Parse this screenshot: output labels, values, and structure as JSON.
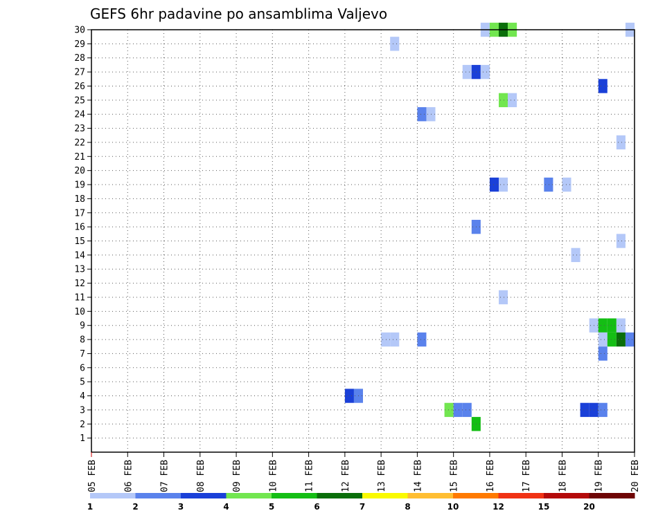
{
  "chart_data": {
    "type": "heatmap",
    "title": "GEFS 6hr padavine po ansamblima Valjevo",
    "xlabel": "",
    "ylabel": "",
    "x_tick_labels": [
      "05 FEB",
      "06 FEB",
      "07 FEB",
      "08 FEB",
      "09 FEB",
      "10 FEB",
      "11 FEB",
      "12 FEB",
      "13 FEB",
      "14 FEB",
      "15 FEB",
      "16 FEB",
      "17 FEB",
      "18 FEB",
      "19 FEB",
      "20 FEB"
    ],
    "xlim": [
      0,
      15
    ],
    "ylim": [
      0,
      30
    ],
    "y_ticks": [
      1,
      2,
      3,
      4,
      5,
      6,
      7,
      8,
      9,
      10,
      11,
      12,
      13,
      14,
      15,
      16,
      17,
      18,
      19,
      20,
      21,
      22,
      23,
      24,
      25,
      26,
      27,
      28,
      29,
      30
    ],
    "grid": true,
    "legend": {
      "placement": "bottom",
      "levels": [
        "1",
        "2",
        "3",
        "4",
        "5",
        "6",
        "7",
        "8",
        "10",
        "12",
        "15",
        "20"
      ],
      "colors": [
        "#b4c8f8",
        "#5a82ec",
        "#1a40d8",
        "#72e650",
        "#14be14",
        "#0a6e0a",
        "#fafa00",
        "#ffbe32",
        "#ff7a00",
        "#f03214",
        "#b40a0a",
        "#6e0505"
      ]
    },
    "cell_duration_days": 0.25,
    "cells": [
      {
        "member": 30,
        "time": 10.75,
        "color": "#b4c8f8"
      },
      {
        "member": 30,
        "time": 11.0,
        "color": "#72e650"
      },
      {
        "member": 30,
        "time": 11.25,
        "color": "#0a6e0a"
      },
      {
        "member": 30,
        "time": 11.5,
        "color": "#72e650"
      },
      {
        "member": 30,
        "time": 14.75,
        "color": "#b4c8f8"
      },
      {
        "member": 29,
        "time": 8.25,
        "color": "#b4c8f8"
      },
      {
        "member": 27,
        "time": 10.25,
        "color": "#b4c8f8"
      },
      {
        "member": 27,
        "time": 10.5,
        "color": "#1a40d8"
      },
      {
        "member": 27,
        "time": 10.75,
        "color": "#b4c8f8"
      },
      {
        "member": 26,
        "time": 14.0,
        "color": "#1a40d8"
      },
      {
        "member": 25,
        "time": 11.25,
        "color": "#72e650"
      },
      {
        "member": 25,
        "time": 11.5,
        "color": "#b4c8f8"
      },
      {
        "member": 24,
        "time": 9.0,
        "color": "#5a82ec"
      },
      {
        "member": 24,
        "time": 9.25,
        "color": "#b4c8f8"
      },
      {
        "member": 22,
        "time": 14.5,
        "color": "#b4c8f8"
      },
      {
        "member": 19,
        "time": 11.0,
        "color": "#1a40d8"
      },
      {
        "member": 19,
        "time": 11.25,
        "color": "#b4c8f8"
      },
      {
        "member": 19,
        "time": 12.5,
        "color": "#5a82ec"
      },
      {
        "member": 19,
        "time": 13.0,
        "color": "#b4c8f8"
      },
      {
        "member": 16,
        "time": 10.5,
        "color": "#5a82ec"
      },
      {
        "member": 15,
        "time": 14.5,
        "color": "#b4c8f8"
      },
      {
        "member": 14,
        "time": 13.25,
        "color": "#b4c8f8"
      },
      {
        "member": 11,
        "time": 11.25,
        "color": "#b4c8f8"
      },
      {
        "member": 9,
        "time": 13.75,
        "color": "#b4c8f8"
      },
      {
        "member": 9,
        "time": 14.0,
        "color": "#14be14"
      },
      {
        "member": 9,
        "time": 14.25,
        "color": "#14be14"
      },
      {
        "member": 9,
        "time": 14.5,
        "color": "#b4c8f8"
      },
      {
        "member": 8,
        "time": 8.0,
        "color": "#b4c8f8"
      },
      {
        "member": 8,
        "time": 8.25,
        "color": "#b4c8f8"
      },
      {
        "member": 8,
        "time": 9.0,
        "color": "#5a82ec"
      },
      {
        "member": 8,
        "time": 14.0,
        "color": "#b4c8f8"
      },
      {
        "member": 8,
        "time": 14.25,
        "color": "#14be14"
      },
      {
        "member": 8,
        "time": 14.5,
        "color": "#0a6e0a"
      },
      {
        "member": 8,
        "time": 14.75,
        "color": "#5a82ec"
      },
      {
        "member": 7,
        "time": 14.0,
        "color": "#5a82ec"
      },
      {
        "member": 4,
        "time": 7.0,
        "color": "#1a40d8"
      },
      {
        "member": 4,
        "time": 7.25,
        "color": "#5a82ec"
      },
      {
        "member": 3,
        "time": 9.75,
        "color": "#72e650"
      },
      {
        "member": 3,
        "time": 10.0,
        "color": "#5a82ec"
      },
      {
        "member": 3,
        "time": 10.25,
        "color": "#5a82ec"
      },
      {
        "member": 3,
        "time": 13.5,
        "color": "#1a40d8"
      },
      {
        "member": 3,
        "time": 13.75,
        "color": "#1a40d8"
      },
      {
        "member": 3,
        "time": 14.0,
        "color": "#5a82ec"
      },
      {
        "member": 2,
        "time": 10.5,
        "color": "#14be14"
      }
    ]
  }
}
